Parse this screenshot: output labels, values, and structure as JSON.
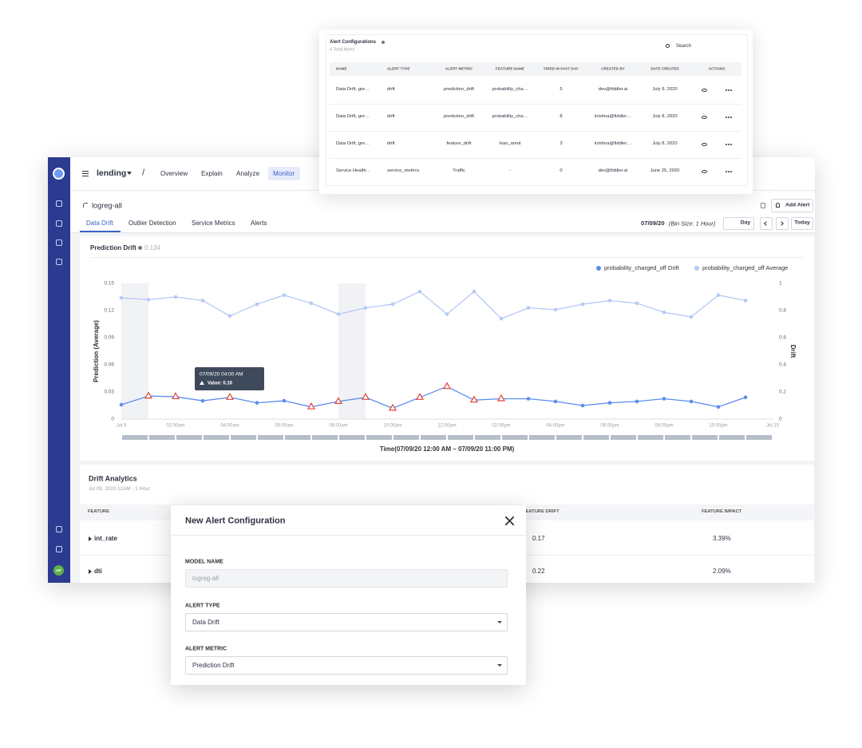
{
  "app": {
    "project": "lending",
    "separator": "/",
    "nav": [
      "Overview",
      "Explain",
      "Analyze",
      "Monitor"
    ],
    "model": "logreg-all",
    "tabs": [
      "Data Drift",
      "Outlier Detection",
      "Service Metrics",
      "Alerts"
    ],
    "add_alert": "Add Alert",
    "date": "07/09/20",
    "bin_size": "(Bin Size: 1 Hour)",
    "period": "Day",
    "today": "Today",
    "avatar": "UP"
  },
  "alert_configurations": {
    "title": "Alert Configurations",
    "subtitle": "4 Total Alerts",
    "search": "Search",
    "columns": [
      "NAME",
      "ALERT TYPE",
      "ALERT METRIC",
      "FEATURE NAME",
      "FIRED IN PAST DAY",
      "CREATED BY",
      "DATE CREATED",
      "ACTIONS"
    ],
    "rows": [
      [
        "Data Drift, gre…",
        "drift",
        "prediction_drift",
        "probability_cha…",
        5,
        "dev@fiddler.ai",
        "July 9, 2020"
      ],
      [
        "Data Drift, gre…",
        "drift",
        "prediction_drift",
        "probability_cha…",
        8,
        "krishna@fiddler…",
        "July 8, 2020"
      ],
      [
        "Data Drift, gre…",
        "drift",
        "feature_drift",
        "loan_amnt",
        3,
        "krishna@fiddler…",
        "July 8, 2020"
      ],
      [
        "Service Health…",
        "service_metrics",
        "Traffic",
        "-",
        0,
        "dev@fiddler.ai",
        "June 25, 2020"
      ]
    ]
  },
  "chart_data": {
    "type": "line",
    "title": "Prediction Drift",
    "title_value": 0.134,
    "y_label": "Prediction (Average)",
    "y2_label": "Drift",
    "x_label": "Time(07/09/20 12:00 AM – 07/09/20 11:00 PM)",
    "x": [
      0,
      1,
      2,
      3,
      4,
      5,
      6,
      7,
      8,
      9,
      10,
      11,
      12,
      13,
      14,
      15,
      16,
      17,
      18,
      19,
      20,
      21,
      22,
      23
    ],
    "xlim": [
      0,
      24
    ],
    "xticks": [
      {
        "value": 0,
        "label": "Jul 9"
      },
      {
        "value": 2,
        "label": "02:00am"
      },
      {
        "value": 4,
        "label": "04:00am"
      },
      {
        "value": 6,
        "label": "06:00am"
      },
      {
        "value": 8,
        "label": "08:00am"
      },
      {
        "value": 10,
        "label": "10:00am"
      },
      {
        "value": 12,
        "label": "12:00pm"
      },
      {
        "value": 14,
        "label": "02:00pm"
      },
      {
        "value": 16,
        "label": "04:00pm"
      },
      {
        "value": 18,
        "label": "06:00pm"
      },
      {
        "value": 20,
        "label": "08:00pm"
      },
      {
        "value": 22,
        "label": "10:00pm"
      },
      {
        "value": 24,
        "label": "Jul 10"
      }
    ],
    "ylim": [
      0,
      0.15
    ],
    "yticks": [
      0,
      0.03,
      0.06,
      0.09,
      0.12,
      0.15
    ],
    "y2lim": [
      0,
      1
    ],
    "y2ticks": [
      0,
      0.2,
      0.4,
      0.6,
      0.8,
      1
    ],
    "grid": false,
    "legend": "top-right",
    "series": [
      {
        "name": "probability_charged_off Drift",
        "color": "#5b8def",
        "axis": "y2",
        "values": [
          0.106,
          0.17,
          0.165,
          0.135,
          0.16,
          0.12,
          0.135,
          0.09,
          0.13,
          0.16,
          0.08,
          0.16,
          0.24,
          0.14,
          0.15,
          0.15,
          0.13,
          0.1,
          0.12,
          0.13,
          0.15,
          0.13,
          0.09,
          0.16
        ]
      },
      {
        "name": "probability_charged_off Average",
        "color": "#b5c9f5",
        "axis": "y",
        "values": [
          0.134,
          0.132,
          0.135,
          0.131,
          0.114,
          0.127,
          0.137,
          0.128,
          0.116,
          0.123,
          0.127,
          0.141,
          0.116,
          0.141,
          0.111,
          0.123,
          0.121,
          0.127,
          0.131,
          0.128,
          0.118,
          0.113,
          0.137,
          0.131
        ]
      }
    ],
    "alerts": [
      1,
      2,
      4,
      7,
      8,
      9,
      10,
      11,
      12,
      13,
      14
    ],
    "highlights": [
      [
        0,
        1
      ],
      [
        8,
        9
      ]
    ],
    "tooltip": {
      "title": "07/09/20 04:00 AM",
      "label": "Value: 0.16"
    }
  },
  "drift_analytics": {
    "title": "Drift Analytics",
    "subtitle": "Jul 09, 2020 12AM - 1 Hour",
    "columns": [
      "FEATURE",
      "FEATURE DRIFT",
      "FEATURE IMPACT"
    ],
    "rows": [
      [
        "int_rate",
        0.17,
        "3.39%"
      ],
      [
        "dti",
        0.22,
        "2.09%"
      ]
    ]
  },
  "new_alert": {
    "title": "New Alert Configuration",
    "model_name_label": "MODEL NAME",
    "model_name": "logreg-all",
    "alert_type_label": "ALERT TYPE",
    "alert_type": "Data Drift",
    "alert_metric_label": "ALERT METRIC",
    "alert_metric": "Prediction Drift"
  }
}
